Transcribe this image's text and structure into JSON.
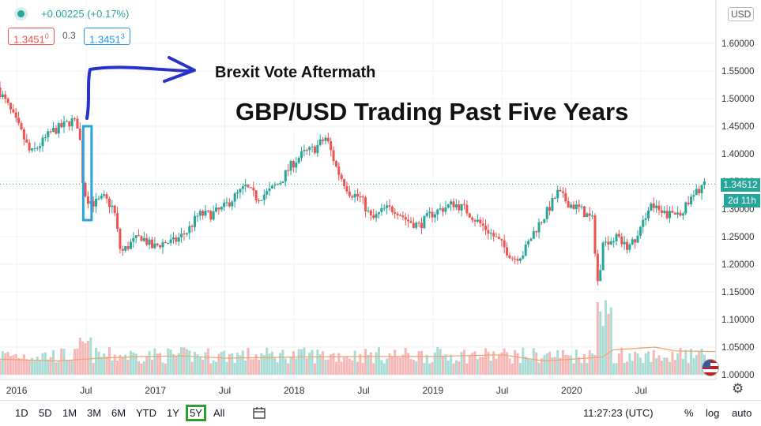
{
  "header": {
    "change": "+0.00225 (+0.17%)",
    "bid": "1.3451",
    "bid_sup": "0",
    "spread": "0.3",
    "ask": "1.3451",
    "ask_sup": "3",
    "currency": "USD"
  },
  "annotation": "Brexit Vote Aftermath",
  "title": "GBP/USD Trading Past Five Years",
  "price_label": "1.34512",
  "countdown": "2d 11h",
  "toolbar": {
    "ranges": [
      "1D",
      "5D",
      "1M",
      "3M",
      "6M",
      "YTD",
      "1Y",
      "5Y",
      "All"
    ],
    "selected": "5Y",
    "clock": "11:27:23 (UTC)",
    "pct": "%",
    "log": "log",
    "auto": "auto"
  },
  "colors": {
    "up": "#26a69a",
    "down": "#ef5350",
    "ma": "#f0a06a",
    "highlight": "#2aa3dc",
    "arrow": "#2832c8",
    "selected_range": "#2e9e32"
  },
  "icons": {
    "settings": "gear-icon",
    "calendar": "calendar-icon",
    "flag": "us-flag-icon",
    "status": "status-dot-icon"
  },
  "chart_data": {
    "type": "candlestick",
    "y_ticks": [
      "1.00000",
      "1.05000",
      "1.10000",
      "1.15000",
      "1.20000",
      "1.25000",
      "1.30000",
      "1.35000",
      "1.40000",
      "1.45000",
      "1.50000",
      "1.55000",
      "1.60000"
    ],
    "ylim": [
      1.0,
      1.65
    ],
    "x_ticks": [
      "2016",
      "Jul",
      "2017",
      "Jul",
      "2018",
      "Jul",
      "2019",
      "Jul",
      "2020",
      "Jul"
    ],
    "x_tick_dates": [
      2016.0,
      2016.5,
      2017.0,
      2017.5,
      2018.0,
      2018.5,
      2019.0,
      2019.5,
      2020.0,
      2020.5
    ],
    "xlim": [
      2015.88,
      2021.04
    ],
    "last_price": 1.34512,
    "close_path": [
      [
        2015.88,
        1.52
      ],
      [
        2015.95,
        1.49
      ],
      [
        2016.05,
        1.44
      ],
      [
        2016.12,
        1.4
      ],
      [
        2016.2,
        1.42
      ],
      [
        2016.27,
        1.44
      ],
      [
        2016.35,
        1.45
      ],
      [
        2016.42,
        1.46
      ],
      [
        2016.47,
        1.45
      ],
      [
        2016.49,
        1.36
      ],
      [
        2016.52,
        1.32
      ],
      [
        2016.58,
        1.31
      ],
      [
        2016.65,
        1.32
      ],
      [
        2016.72,
        1.3
      ],
      [
        2016.77,
        1.22
      ],
      [
        2016.85,
        1.24
      ],
      [
        2016.92,
        1.25
      ],
      [
        2017.0,
        1.23
      ],
      [
        2017.08,
        1.24
      ],
      [
        2017.15,
        1.24
      ],
      [
        2017.25,
        1.26
      ],
      [
        2017.33,
        1.29
      ],
      [
        2017.42,
        1.29
      ],
      [
        2017.5,
        1.3
      ],
      [
        2017.58,
        1.32
      ],
      [
        2017.67,
        1.34
      ],
      [
        2017.75,
        1.32
      ],
      [
        2017.83,
        1.33
      ],
      [
        2017.92,
        1.35
      ],
      [
        2018.0,
        1.38
      ],
      [
        2018.08,
        1.4
      ],
      [
        2018.17,
        1.41
      ],
      [
        2018.25,
        1.43
      ],
      [
        2018.33,
        1.37
      ],
      [
        2018.42,
        1.33
      ],
      [
        2018.5,
        1.32
      ],
      [
        2018.58,
        1.28
      ],
      [
        2018.67,
        1.3
      ],
      [
        2018.75,
        1.3
      ],
      [
        2018.83,
        1.28
      ],
      [
        2018.92,
        1.27
      ],
      [
        2019.0,
        1.29
      ],
      [
        2019.08,
        1.3
      ],
      [
        2019.17,
        1.31
      ],
      [
        2019.25,
        1.3
      ],
      [
        2019.33,
        1.28
      ],
      [
        2019.42,
        1.26
      ],
      [
        2019.5,
        1.24
      ],
      [
        2019.6,
        1.21
      ],
      [
        2019.67,
        1.22
      ],
      [
        2019.75,
        1.26
      ],
      [
        2019.83,
        1.29
      ],
      [
        2019.92,
        1.33
      ],
      [
        2020.0,
        1.31
      ],
      [
        2020.08,
        1.3
      ],
      [
        2020.17,
        1.28
      ],
      [
        2020.21,
        1.16
      ],
      [
        2020.25,
        1.24
      ],
      [
        2020.33,
        1.25
      ],
      [
        2020.42,
        1.23
      ],
      [
        2020.5,
        1.25
      ],
      [
        2020.58,
        1.31
      ],
      [
        2020.67,
        1.29
      ],
      [
        2020.75,
        1.29
      ],
      [
        2020.83,
        1.3
      ],
      [
        2020.92,
        1.33
      ],
      [
        2020.96,
        1.345
      ]
    ],
    "volume_ma": [
      [
        2015.88,
        0.028
      ],
      [
        2016.3,
        0.025
      ],
      [
        2016.6,
        0.03
      ],
      [
        2016.9,
        0.033
      ],
      [
        2017.2,
        0.034
      ],
      [
        2017.5,
        0.03
      ],
      [
        2018.0,
        0.032
      ],
      [
        2018.5,
        0.033
      ],
      [
        2019.0,
        0.033
      ],
      [
        2019.5,
        0.036
      ],
      [
        2019.8,
        0.025
      ],
      [
        2020.0,
        0.028
      ],
      [
        2020.22,
        0.032
      ],
      [
        2020.3,
        0.045
      ],
      [
        2020.6,
        0.05
      ],
      [
        2020.75,
        0.043
      ],
      [
        2021.04,
        0.042
      ]
    ],
    "highlight": {
      "x_start": 2016.48,
      "x_end": 2016.54,
      "y_low": 1.28,
      "y_high": 1.45
    }
  }
}
